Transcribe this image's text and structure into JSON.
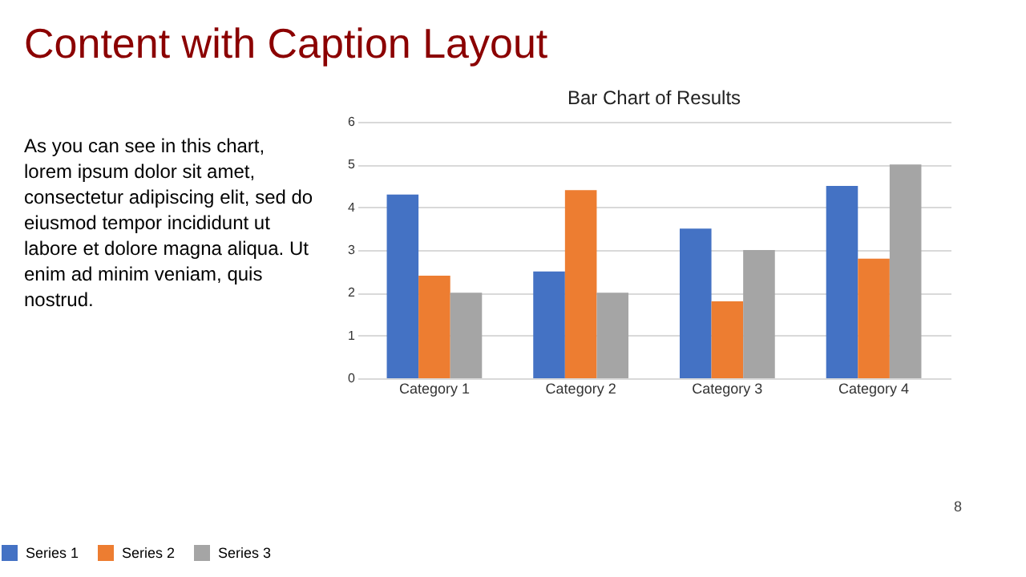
{
  "chart_data": {
    "type": "bar",
    "title": "Content with Caption Layout",
    "subtitle": "Bar Chart of Results",
    "annotations": [
      "As you can see in this chart,\nlorem ipsum dolor sit amet,\nconsectetur adipiscing elit, sed do\neiusmod tempor incididunt ut\nlabore et dolore magna aliqua. Ut\nenim ad minim veniam, quis\nnostrud.",
      "8"
    ],
    "categories": [
      "Category 1",
      "Category 2",
      "Category 3",
      "Category 4"
    ],
    "series": [
      {
        "name": "Series 1",
        "color": "#4472c4",
        "values": [
          4.3,
          2.5,
          3.5,
          4.5
        ]
      },
      {
        "name": "Series 2",
        "color": "#ed7d31",
        "values": [
          2.4,
          4.4,
          1.8,
          2.8
        ]
      },
      {
        "name": "Series 3",
        "color": "#a5a5a5",
        "values": [
          2,
          2,
          3,
          5
        ]
      }
    ],
    "ylim": [
      0,
      6
    ],
    "yticks": [
      0,
      1,
      2,
      3,
      4,
      5,
      6
    ],
    "grid": "y",
    "legend": "bottom"
  }
}
